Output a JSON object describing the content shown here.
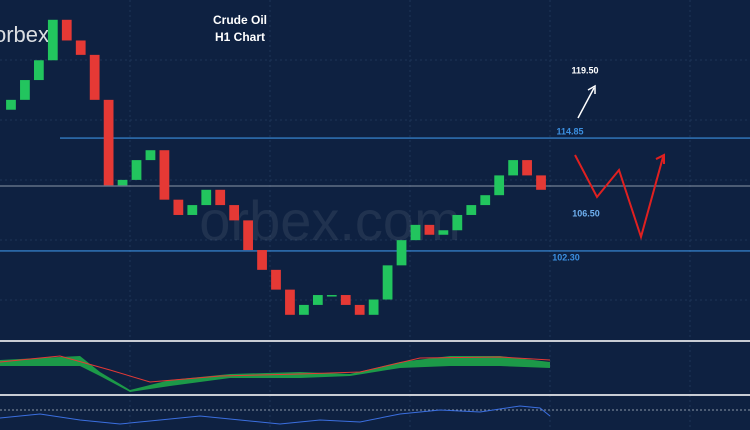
{
  "chart_data": {
    "type": "candlestick",
    "title": "Crude Oil",
    "subtitle": "H1 Chart",
    "open": [
      118.0,
      119.1,
      121.3,
      123.5,
      128.0,
      125.7,
      124.1,
      119.1,
      109.6,
      110.2,
      112.4,
      113.5,
      108.0,
      106.3,
      107.4,
      109.1,
      107.4,
      105.7,
      102.4,
      100.2,
      98.0,
      95.2,
      96.3,
      97.4,
      97.4,
      96.3,
      95.2,
      96.9,
      100.7,
      103.5,
      105.2,
      104.1,
      104.6,
      106.3,
      107.4,
      108.5,
      110.7,
      112.4,
      110.7
    ],
    "close": [
      119.1,
      121.3,
      123.5,
      128.0,
      125.7,
      124.1,
      119.1,
      109.6,
      110.2,
      112.4,
      113.5,
      108.0,
      106.3,
      107.4,
      109.1,
      107.4,
      105.7,
      102.4,
      100.2,
      98.0,
      95.2,
      96.3,
      97.4,
      97.4,
      96.3,
      95.2,
      96.9,
      100.7,
      103.5,
      105.2,
      104.1,
      104.6,
      106.3,
      107.4,
      108.5,
      110.7,
      112.4,
      110.7,
      109.1
    ],
    "up_color": "#22c55e",
    "down_color": "#e53935",
    "projection": [
      112.97,
      108.3,
      111.3,
      103.86,
      112.74
    ],
    "projection_color": "#e02020",
    "levels": [
      114.85,
      {
        "value": 102.3,
        "label": "102.30"
      }
    ],
    "level_color": "#3b8fe0",
    "targets": [
      {
        "value": 106.5,
        "label": "106.50"
      },
      {
        "value": 119.5,
        "label": "119.50"
      }
    ],
    "ylim": [
      92.4,
      130.2
    ]
  }
}
